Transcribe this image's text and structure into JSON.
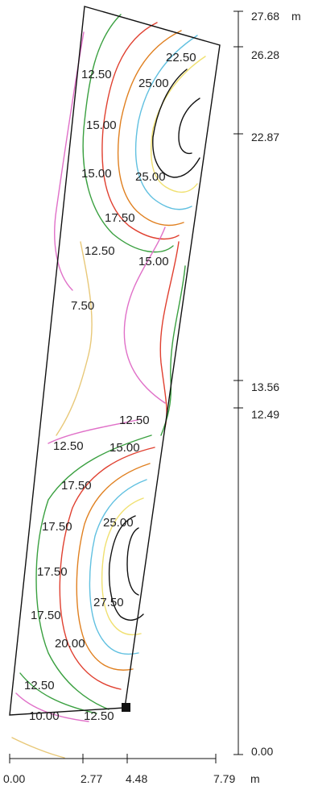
{
  "right_axis": {
    "unit": "m",
    "ticks": [
      {
        "label": "27.68",
        "value": 27.68
      },
      {
        "label": "26.28",
        "value": 26.28
      },
      {
        "label": "22.87",
        "value": 22.87
      },
      {
        "label": "13.56",
        "value": 13.56
      },
      {
        "label": "12.49",
        "value": 12.49
      },
      {
        "label": "0.00",
        "value": 0.0
      }
    ]
  },
  "bottom_axis": {
    "unit": "m",
    "ticks": [
      {
        "label": "0.00",
        "value": 0.0
      },
      {
        "label": "2.77",
        "value": 2.77
      },
      {
        "label": "4.48",
        "value": 4.48
      },
      {
        "label": "7.79",
        "value": 7.79
      }
    ]
  },
  "contour_labels": [
    {
      "label": "22.50",
      "value": 22.5
    },
    {
      "label": "12.50",
      "value": 12.5
    },
    {
      "label": "25.00",
      "value": 25.0
    },
    {
      "label": "15.00",
      "value": 15.0
    },
    {
      "label": "15.00",
      "value": 15.0
    },
    {
      "label": "25.00",
      "value": 25.0
    },
    {
      "label": "17.50",
      "value": 17.5
    },
    {
      "label": "12.50",
      "value": 12.5
    },
    {
      "label": "15.00",
      "value": 15.0
    },
    {
      "label": "7.50",
      "value": 7.5
    },
    {
      "label": "12.50",
      "value": 12.5
    },
    {
      "label": "12.50",
      "value": 12.5
    },
    {
      "label": "15.00",
      "value": 15.0
    },
    {
      "label": "17.50",
      "value": 17.5
    },
    {
      "label": "17.50",
      "value": 17.5
    },
    {
      "label": "25.00",
      "value": 25.0
    },
    {
      "label": "17.50",
      "value": 17.5
    },
    {
      "label": "17.50",
      "value": 17.5
    },
    {
      "label": "27.50",
      "value": 27.5
    },
    {
      "label": "20.00",
      "value": 20.0
    },
    {
      "label": "12.50",
      "value": 12.5
    },
    {
      "label": "10.00",
      "value": 10.0
    },
    {
      "label": "12.50",
      "value": 12.5
    }
  ],
  "isoline_colors": {
    "7.50": "#e8c878",
    "10.00": "#e070c8",
    "12.50": "#3aa040",
    "15.00": "#e04030",
    "17.50": "#e08020",
    "20.00": "#60c0e0",
    "22.50": "#111111",
    "25.00": "#f0e070",
    "27.50": "#111111",
    "boundary": "#111111"
  },
  "luminaire_marker": "filled-square"
}
